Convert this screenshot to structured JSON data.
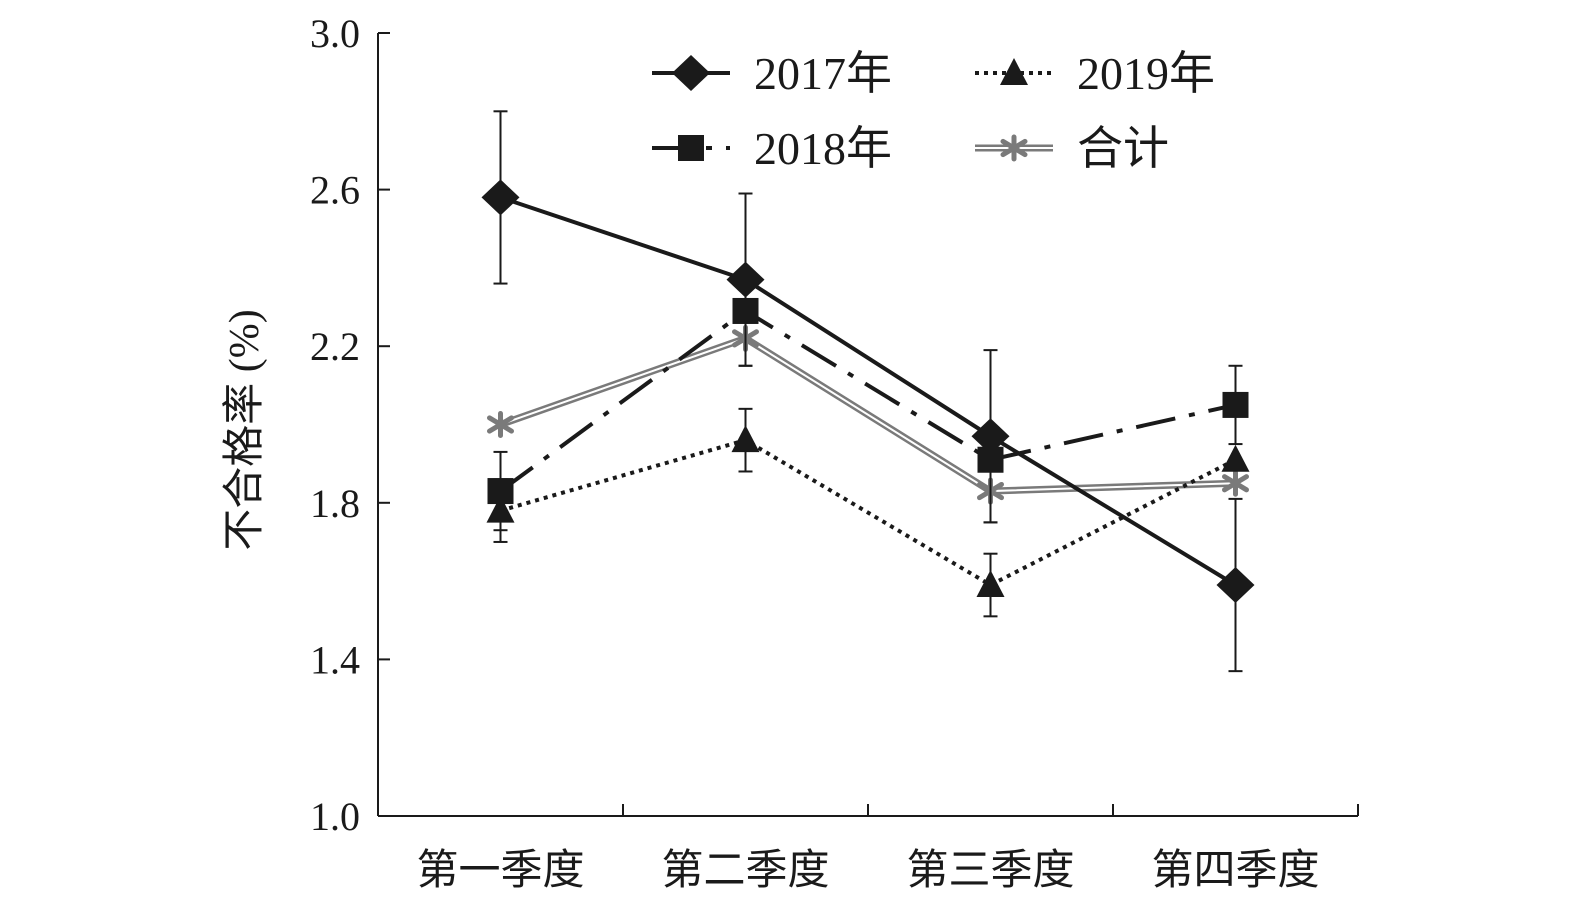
{
  "chart_data": {
    "type": "line",
    "categories": [
      "第一季度",
      "第二季度",
      "第三季度",
      "第四季度"
    ],
    "ylabel": "不合格率 (%)",
    "xlabel": "",
    "ylim": [
      1.0,
      3.0
    ],
    "yticks": [
      "1.0",
      "1.4",
      "1.8",
      "2.2",
      "2.6",
      "3.0"
    ],
    "grid": false,
    "legend_position": "top-right",
    "series": [
      {
        "name": "2017年",
        "values": [
          2.58,
          2.37,
          1.97,
          1.59
        ],
        "error": [
          0.22,
          0.22,
          0.22,
          0.22
        ],
        "marker": "diamond",
        "line": "solid",
        "color": "#1a1a1a"
      },
      {
        "name": "2018年",
        "values": [
          1.83,
          2.29,
          1.91,
          2.05
        ],
        "error": [
          0.1,
          0.0,
          0.0,
          0.1
        ],
        "marker": "square",
        "line": "dashdot",
        "color": "#1a1a1a"
      },
      {
        "name": "2019年",
        "values": [
          1.78,
          1.96,
          1.59,
          1.91
        ],
        "error": [
          0.08,
          0.08,
          0.08,
          0.0
        ],
        "marker": "triangle",
        "line": "dotted",
        "color": "#1a1a1a"
      },
      {
        "name": "合计",
        "values": [
          2.0,
          2.22,
          1.83,
          1.85
        ],
        "error": [
          0.0,
          0.07,
          0.08,
          0.0
        ],
        "marker": "asterisk",
        "line": "double",
        "color": "#7a7a7a"
      }
    ],
    "legend_order": [
      "2017年",
      "2019年",
      "2018年",
      "合计"
    ]
  }
}
